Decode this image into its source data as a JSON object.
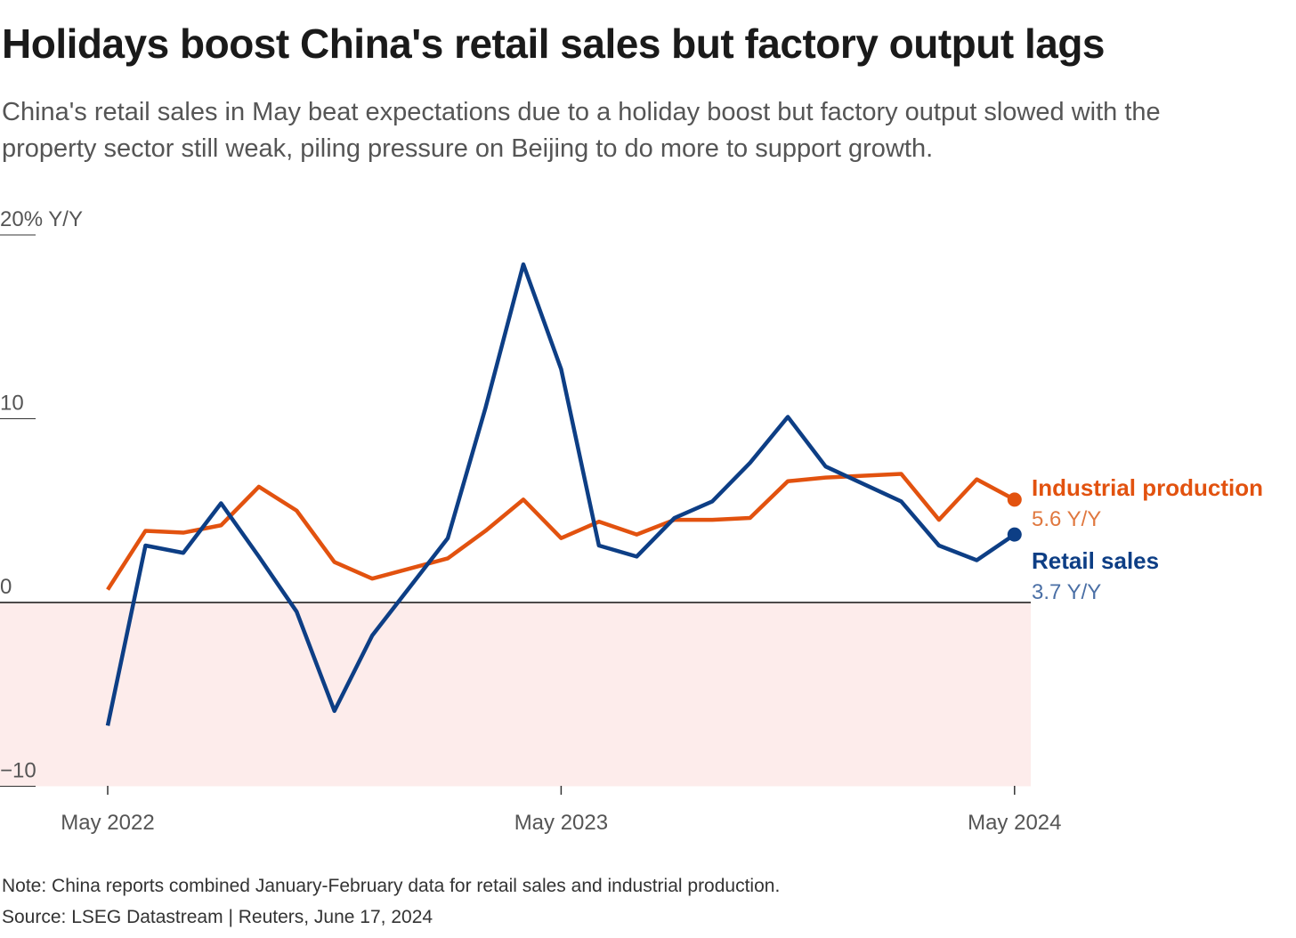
{
  "title": "Holidays boost China's retail sales but factory output lags",
  "subtitle": "China's retail sales in May beat expectations due to a holiday boost but factory output slowed with the property sector still weak, piling pressure on Beijing to do more to support growth.",
  "note": "Note: China reports combined January-February data for retail sales and industrial production.",
  "source": "Source: LSEG Datastream | Reuters, June 17, 2024",
  "chart_data": {
    "type": "line",
    "ylabel": "Y/Y",
    "ylim": [
      -10,
      20
    ],
    "yticks": [
      {
        "v": 20,
        "label": "20% Y/Y"
      },
      {
        "v": 10,
        "label": "10"
      },
      {
        "v": 0,
        "label": "0"
      },
      {
        "v": -10,
        "label": "−10"
      }
    ],
    "xticks": [
      {
        "x": "2022-05",
        "label": "May 2022"
      },
      {
        "x": "2023-05",
        "label": "May 2023"
      },
      {
        "x": "2024-05",
        "label": "May 2024"
      }
    ],
    "negative_shading_color": "#fdeceb",
    "x": [
      "2022-05",
      "2022-06",
      "2022-07",
      "2022-08",
      "2022-09",
      "2022-10",
      "2022-11",
      "2022-12",
      "2023-02",
      "2023-03",
      "2023-04",
      "2023-05",
      "2023-06",
      "2023-07",
      "2023-08",
      "2023-09",
      "2023-10",
      "2023-11",
      "2023-12",
      "2024-02",
      "2024-03",
      "2024-04",
      "2024-05"
    ],
    "series": [
      {
        "name": "Industrial production",
        "end_label": "5.6 Y/Y",
        "color": "#e2520f",
        "label_color": "#e2520f",
        "value_color": "#e0783f",
        "values": [
          0.7,
          3.9,
          3.8,
          4.2,
          6.3,
          5.0,
          2.2,
          1.3,
          2.4,
          3.9,
          5.6,
          3.5,
          4.4,
          3.7,
          4.5,
          4.5,
          4.6,
          6.6,
          6.8,
          7.0,
          4.5,
          6.7,
          5.6
        ]
      },
      {
        "name": "Retail sales",
        "end_label": "3.7 Y/Y",
        "color": "#0d3e85",
        "label_color": "#0d3e85",
        "value_color": "#4a6fa5",
        "values": [
          -6.7,
          3.1,
          2.7,
          5.4,
          2.5,
          -0.5,
          -5.9,
          -1.8,
          3.5,
          10.6,
          18.4,
          12.7,
          3.1,
          2.5,
          4.6,
          5.5,
          7.6,
          10.1,
          7.4,
          5.5,
          3.1,
          2.3,
          3.7
        ]
      }
    ]
  }
}
